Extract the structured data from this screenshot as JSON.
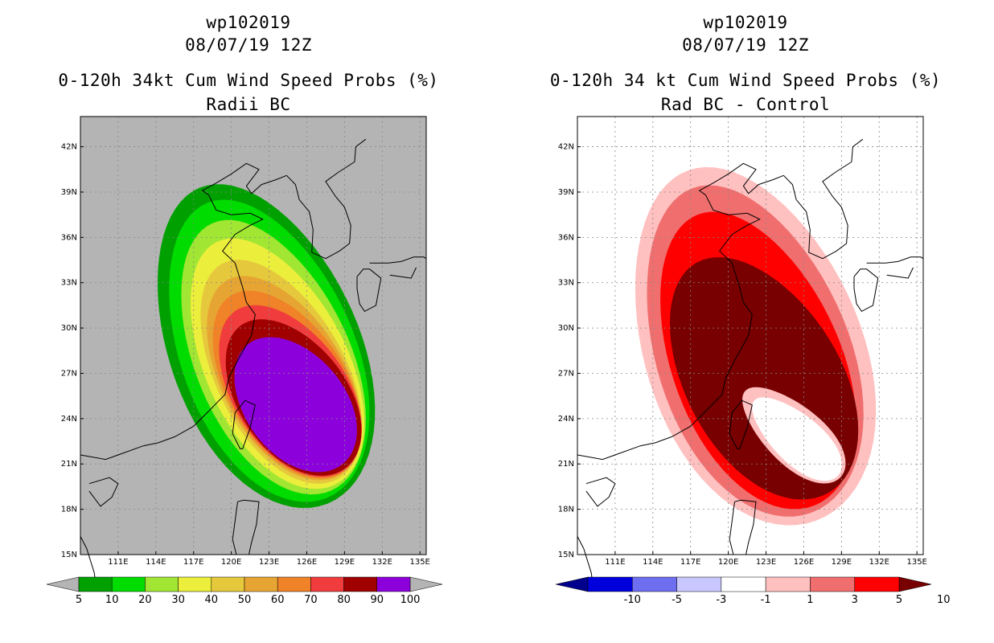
{
  "panels": [
    {
      "id": "left",
      "storm_id": "wp102019",
      "datetime": "08/07/19 12Z",
      "product": "0-120h 34kt Cum Wind Speed Probs (%)",
      "subtitle": "Radii BC",
      "background": "#b4b4b4",
      "land_color": "#b4b4b4",
      "colorbar": {
        "labels": [
          "5",
          "10",
          "20",
          "30",
          "40",
          "50",
          "60",
          "70",
          "80",
          "90",
          "100"
        ],
        "colors": [
          "#00a000",
          "#00dc00",
          "#a0e632",
          "#ecee3c",
          "#e6c83c",
          "#e6a532",
          "#f08228",
          "#f03c3c",
          "#a00000",
          "#8c00dc"
        ],
        "low_arrow": "#b4b4b4",
        "high_arrow": "#b4b4b4"
      },
      "contours": [
        {
          "value": "5",
          "color": "#00a000"
        },
        {
          "value": "10",
          "color": "#00dc00"
        },
        {
          "value": "20",
          "color": "#a0e632"
        },
        {
          "value": "30",
          "color": "#ecee3c"
        },
        {
          "value": "40",
          "color": "#e6c83c"
        },
        {
          "value": "50",
          "color": "#e6a532"
        },
        {
          "value": "60",
          "color": "#f08228"
        },
        {
          "value": "70",
          "color": "#f03c3c"
        },
        {
          "value": "80",
          "color": "#a00000"
        },
        {
          "value": "90",
          "color": "#8c00dc"
        }
      ]
    },
    {
      "id": "right",
      "storm_id": "wp102019",
      "datetime": "08/07/19 12Z",
      "product": "0-120h 34 kt Cum Wind Speed Probs (%)",
      "subtitle": "Rad BC - Control",
      "background": "#ffffff",
      "land_color": "#ffffff",
      "colorbar": {
        "labels": [
          "-10",
          "-5",
          "-3",
          "-1",
          "1",
          "3",
          "5",
          "10"
        ],
        "colors": [
          "#0000dc",
          "#6e6ef0",
          "#c8c8ff",
          "#ffffff",
          "#ffc0c0",
          "#f06e6e",
          "#ff0000"
        ],
        "low_arrow": "#00008c",
        "high_arrow": "#780000"
      },
      "contours": [
        {
          "value": "1",
          "color": "#ffc0c0"
        },
        {
          "value": "3",
          "color": "#f06e6e"
        },
        {
          "value": "5",
          "color": "#ff0000"
        },
        {
          "value": "10",
          "color": "#780000"
        }
      ],
      "hole_color": "#ffffff",
      "hole_rim_color": "#ffc0c0"
    }
  ],
  "map": {
    "lat_labels": [
      "42N",
      "39N",
      "36N",
      "33N",
      "30N",
      "27N",
      "24N",
      "21N",
      "18N",
      "15N"
    ],
    "lon_labels": [
      "111E",
      "114E",
      "117E",
      "120E",
      "123E",
      "126E",
      "129E",
      "132E",
      "135E"
    ],
    "lat_values": [
      42,
      39,
      36,
      33,
      30,
      27,
      24,
      21,
      18,
      15
    ],
    "lon_values": [
      111,
      114,
      117,
      120,
      123,
      126,
      129,
      132,
      135
    ],
    "lat_range": [
      15,
      44
    ],
    "lon_range": [
      108,
      135.5
    ]
  }
}
